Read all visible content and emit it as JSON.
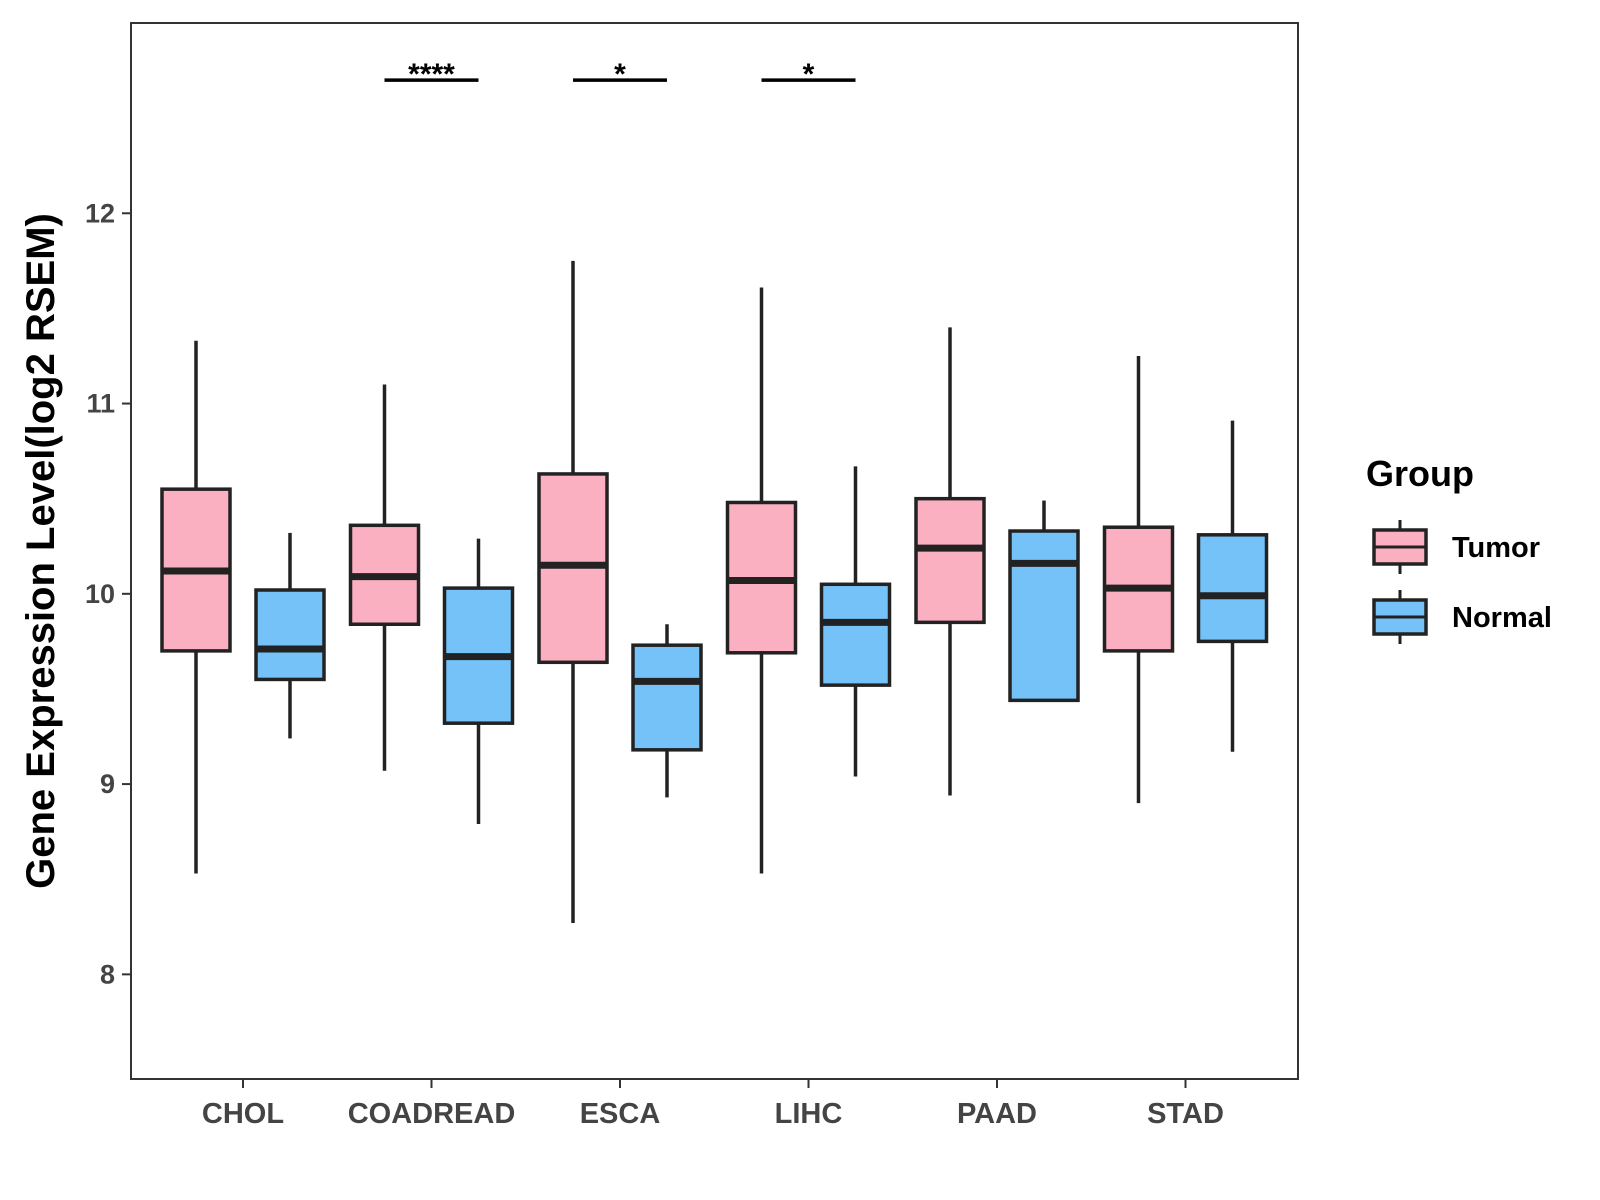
{
  "chart_data": {
    "type": "box",
    "title": "",
    "xlabel": "",
    "ylabel": "Gene Expression Level(log2 RSEM)",
    "ylim": [
      7.45,
      13.0
    ],
    "yticks": [
      8,
      9,
      10,
      11,
      12
    ],
    "categories": [
      "CHOL",
      "COADREAD",
      "ESCA",
      "LIHC",
      "PAAD",
      "STAD"
    ],
    "legend": {
      "title": "Group",
      "position": "right"
    },
    "series": [
      {
        "name": "Tumor",
        "color": "#FBB0C1",
        "boxes": [
          {
            "min": 8.53,
            "q1": 9.7,
            "median": 10.12,
            "q3": 10.55,
            "max": 11.33
          },
          {
            "min": 9.07,
            "q1": 9.84,
            "median": 10.09,
            "q3": 10.36,
            "max": 11.1
          },
          {
            "min": 8.27,
            "q1": 9.64,
            "median": 10.15,
            "q3": 10.63,
            "max": 11.75
          },
          {
            "min": 8.53,
            "q1": 9.69,
            "median": 10.07,
            "q3": 10.48,
            "max": 11.61
          },
          {
            "min": 8.94,
            "q1": 9.85,
            "median": 10.24,
            "q3": 10.5,
            "max": 11.4
          },
          {
            "min": 8.9,
            "q1": 9.7,
            "median": 10.03,
            "q3": 10.35,
            "max": 11.25
          }
        ]
      },
      {
        "name": "Normal",
        "color": "#74C2F8",
        "boxes": [
          {
            "min": 9.24,
            "q1": 9.55,
            "median": 9.71,
            "q3": 10.02,
            "max": 10.32
          },
          {
            "min": 8.79,
            "q1": 9.32,
            "median": 9.67,
            "q3": 10.03,
            "max": 10.29
          },
          {
            "min": 8.93,
            "q1": 9.18,
            "median": 9.54,
            "q3": 9.73,
            "max": 9.84
          },
          {
            "min": 9.04,
            "q1": 9.52,
            "median": 9.85,
            "q3": 10.05,
            "max": 10.67
          },
          {
            "min": 9.44,
            "q1": 9.44,
            "median": 10.16,
            "q3": 10.33,
            "max": 10.49
          },
          {
            "min": 9.17,
            "q1": 9.75,
            "median": 9.99,
            "q3": 10.31,
            "max": 10.91
          }
        ]
      }
    ],
    "annotations": [
      {
        "category": "COADREAD",
        "label": "****",
        "y": 12.7
      },
      {
        "category": "ESCA",
        "label": "*",
        "y": 12.7
      },
      {
        "category": "LIHC",
        "label": "*",
        "y": 12.7
      }
    ]
  }
}
